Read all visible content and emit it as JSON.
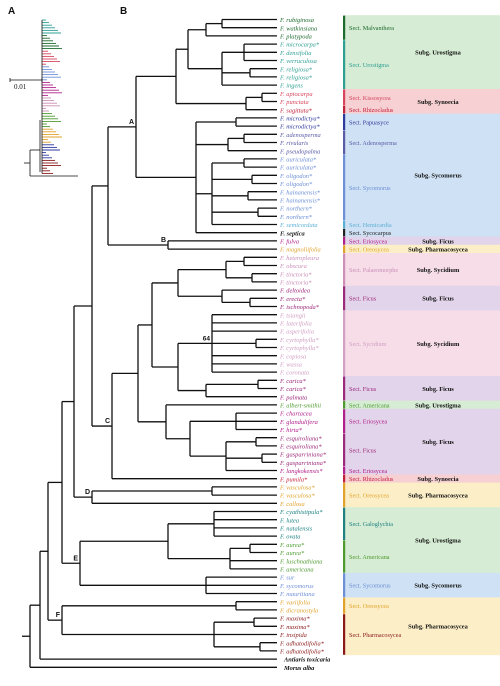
{
  "panels": {
    "a": "A",
    "b": "B"
  },
  "scale_bar": "0.01",
  "node_labels": {
    "a": "A",
    "b": "B",
    "c": "C",
    "d": "D",
    "e": "E",
    "f": "F",
    "support": "64"
  },
  "colors": {
    "Malvanthera": "#1e6b2e",
    "Urostigma": "#2f9f93",
    "Kissosycea": "#d6445e",
    "Rhizocladus": "#c21f3a",
    "Papuasyce": "#2e3b9c",
    "Adenosperma": "#5a5aa6",
    "Sycomorus": "#6c8fd6",
    "Hemicardia": "#5cb0d6",
    "Sycocarpus": "#222222",
    "Eriosycea": "#b0208a",
    "Oreosycea": "#e0a22b",
    "Palaeomorphe": "#cb8fb8",
    "Ficus": "#9c2a7a",
    "Sycidium": "#d1a0c4",
    "Americana": "#4e9a2f",
    "Galoglychia": "#1e8080",
    "Pharmacosycea": "#8a1a1a",
    "black": "#111111"
  },
  "taxa": [
    {
      "name": "F. rubiginosa",
      "c": "Malvanthera"
    },
    {
      "name": "F. watkinsiana",
      "c": "Malvanthera"
    },
    {
      "name": "F. platypoda",
      "c": "Malvanthera"
    },
    {
      "name": "F. microcarpa*",
      "c": "Urostigma"
    },
    {
      "name": "F. densifolia",
      "c": "Urostigma"
    },
    {
      "name": "F. verruculosa",
      "c": "Urostigma"
    },
    {
      "name": "F. religiosa*",
      "c": "Urostigma"
    },
    {
      "name": "F. religiosa*",
      "c": "Urostigma"
    },
    {
      "name": "F. ingens",
      "c": "Urostigma"
    },
    {
      "name": "F. apiocarpa",
      "c": "Kissosycea"
    },
    {
      "name": "F. punctata",
      "c": "Kissosycea"
    },
    {
      "name": "F. sagittata*",
      "c": "Rhizocladus"
    },
    {
      "name": "F. microdictya*",
      "c": "Papuasyce"
    },
    {
      "name": "F. microdictya*",
      "c": "Papuasyce"
    },
    {
      "name": "F. adenosperma",
      "c": "Adenosperma"
    },
    {
      "name": "F. rivularis",
      "c": "Adenosperma"
    },
    {
      "name": "F. pseudopalma",
      "c": "Adenosperma"
    },
    {
      "name": "F. auriculata*",
      "c": "Sycomorus"
    },
    {
      "name": "F. auriculata*",
      "c": "Sycomorus"
    },
    {
      "name": "F. oligodon*",
      "c": "Sycomorus"
    },
    {
      "name": "F. oligodon*",
      "c": "Sycomorus"
    },
    {
      "name": "F. hainanensis*",
      "c": "Sycomorus"
    },
    {
      "name": "F. hainanensis*",
      "c": "Sycomorus"
    },
    {
      "name": "F. northern*",
      "c": "Sycomorus"
    },
    {
      "name": "F. northern*",
      "c": "Sycomorus"
    },
    {
      "name": "F. semicordata",
      "c": "Hemicardia"
    },
    {
      "name": "F. septica",
      "c": "Sycocarpus"
    },
    {
      "name": "F. fulva",
      "c": "Eriosycea"
    },
    {
      "name": "F. magnoliifolia",
      "c": "Oreosycea"
    },
    {
      "name": "F. heteropleura",
      "c": "Palaeomorphe"
    },
    {
      "name": "F. obscura",
      "c": "Palaeomorphe"
    },
    {
      "name": "F. tinctoria*",
      "c": "Palaeomorphe"
    },
    {
      "name": "F. tinctoria*",
      "c": "Palaeomorphe"
    },
    {
      "name": "F. deltoidea",
      "c": "Ficus"
    },
    {
      "name": "F. erecta*",
      "c": "Ficus"
    },
    {
      "name": "F. ischnopoda*",
      "c": "Ficus"
    },
    {
      "name": "F. tsiangii",
      "c": "Sycidium"
    },
    {
      "name": "F. laterifolia",
      "c": "Sycidium"
    },
    {
      "name": "F. asperifolia",
      "c": "Sycidium"
    },
    {
      "name": "F. cyrtophylla*",
      "c": "Sycidium"
    },
    {
      "name": "F. cyrtophylla*",
      "c": "Sycidium"
    },
    {
      "name": "F. copiosa",
      "c": "Sycidium"
    },
    {
      "name": "F. wassa",
      "c": "Sycidium"
    },
    {
      "name": "F. coronata",
      "c": "Sycidium"
    },
    {
      "name": "F. carica*",
      "c": "Ficus"
    },
    {
      "name": "F. carica*",
      "c": "Ficus"
    },
    {
      "name": "F. palmata",
      "c": "Ficus"
    },
    {
      "name": "F. albert-smithii",
      "c": "Americana"
    },
    {
      "name": "F. chartacea",
      "c": "Eriosycea"
    },
    {
      "name": "F. glandulifera",
      "c": "Eriosycea"
    },
    {
      "name": "F. hirta*",
      "c": "Eriosycea"
    },
    {
      "name": "F. esquiroliana*",
      "c": "Ficus"
    },
    {
      "name": "F. esquiroliana*",
      "c": "Ficus"
    },
    {
      "name": "F. gasparriniana*",
      "c": "Ficus"
    },
    {
      "name": "F. gasparriniana*",
      "c": "Ficus"
    },
    {
      "name": "F. langkokensis*",
      "c": "Eriosycea"
    },
    {
      "name": "F. pumila*",
      "c": "Rhizocladus"
    },
    {
      "name": "F. vasculosa*",
      "c": "Oreosycea"
    },
    {
      "name": "F. vasculosa*",
      "c": "Oreosycea"
    },
    {
      "name": "F. callosa",
      "c": "Oreosycea"
    },
    {
      "name": "F. cyathistipula*",
      "c": "Galoglychia"
    },
    {
      "name": "F. lutea",
      "c": "Galoglychia"
    },
    {
      "name": "F. natalensis",
      "c": "Galoglychia"
    },
    {
      "name": "F. ovata",
      "c": "Galoglychia"
    },
    {
      "name": "F. aurea*",
      "c": "Americana"
    },
    {
      "name": "F. aurea*",
      "c": "Americana"
    },
    {
      "name": "F. luschnathiana",
      "c": "Americana"
    },
    {
      "name": "F. americana",
      "c": "Americana"
    },
    {
      "name": "F. sur",
      "c": "Sycomorus"
    },
    {
      "name": "F. sycomorus",
      "c": "Sycomorus"
    },
    {
      "name": "F. mauritiana",
      "c": "Sycomorus"
    },
    {
      "name": "F. variifolia",
      "c": "Oreosycea"
    },
    {
      "name": "F. dicranostyla",
      "c": "Oreosycea"
    },
    {
      "name": "F. maxima*",
      "c": "Pharmacosycea"
    },
    {
      "name": "F. maxima*",
      "c": "Pharmacosycea"
    },
    {
      "name": "F. insipida",
      "c": "Pharmacosycea"
    },
    {
      "name": "F. adhatodifolia*",
      "c": "Pharmacosycea"
    },
    {
      "name": "F. adhatodifolia*",
      "c": "Pharmacosycea"
    },
    {
      "name": "Antiaris toxicaria",
      "c": "black"
    },
    {
      "name": "Morus alba",
      "c": "black"
    }
  ],
  "sections": [
    {
      "label": "Sect. Malvanthera",
      "s": 0,
      "e": 2,
      "c": "Malvanthera",
      "bg": "#d6ecd4"
    },
    {
      "label": "Sect. Urostigma",
      "s": 3,
      "e": 8,
      "c": "Urostigma",
      "bg": "#d6ecd4"
    },
    {
      "label": "Sect. Kissosycea",
      "s": 9,
      "e": 10,
      "c": "Kissosycea",
      "bg": "#f6d0d2"
    },
    {
      "label": "Sect. Rhizocladus",
      "s": 11,
      "e": 11,
      "c": "Rhizocladus",
      "bg": "#f6d0d2"
    },
    {
      "label": "Sect. Papuasyce",
      "s": 12,
      "e": 13,
      "c": "Papuasyce",
      "bg": "#cfe1f4"
    },
    {
      "label": "Sect. Adenosperma",
      "s": 14,
      "e": 16,
      "c": "Adenosperma",
      "bg": "#cfe1f4"
    },
    {
      "label": "Sect. Sycomorus",
      "s": 17,
      "e": 24,
      "c": "Sycomorus",
      "bg": "#cfe1f4"
    },
    {
      "label": "Sect. Hemicardia",
      "s": 25,
      "e": 25,
      "c": "Hemicardia",
      "bg": "#cfe1f4"
    },
    {
      "label": "Sect. Sycocarpus",
      "s": 26,
      "e": 26,
      "c": "Sycocarpus",
      "bg": "#cfe1f4"
    },
    {
      "label": "Sect. Eriosycea",
      "s": 27,
      "e": 27,
      "c": "Eriosycea",
      "bg": "#e2d4ea"
    },
    {
      "label": "Sect. Oreosycea",
      "s": 28,
      "e": 28,
      "c": "Oreosycea",
      "bg": "#fcefc8"
    },
    {
      "label": "Sect. Palaeomorphe",
      "s": 29,
      "e": 32,
      "c": "Palaeomorphe",
      "bg": "#f6dde8"
    },
    {
      "label": "Sect. Ficus",
      "s": 33,
      "e": 35,
      "c": "Ficus",
      "bg": "#e2d4ea"
    },
    {
      "label": "Sect. Sycidium",
      "s": 36,
      "e": 43,
      "c": "Sycidium",
      "bg": "#f6dde8"
    },
    {
      "label": "Sect. Ficus",
      "s": 44,
      "e": 46,
      "c": "Ficus",
      "bg": "#e2d4ea"
    },
    {
      "label": "Sect. Americana",
      "s": 47,
      "e": 47,
      "c": "Americana",
      "bg": "#d6ecd4"
    },
    {
      "label": "Sect. Eriosycea",
      "s": 48,
      "e": 50,
      "c": "Eriosycea",
      "bg": "#e2d4ea"
    },
    {
      "label": "Sect. Ficus",
      "s": 51,
      "e": 54,
      "c": "Ficus",
      "bg": "#e2d4ea"
    },
    {
      "label": "Sect. Eriosycea",
      "s": 55,
      "e": 55,
      "c": "Eriosycea",
      "bg": "#e2d4ea"
    },
    {
      "label": "Sect. Rhizocladus",
      "s": 56,
      "e": 56,
      "c": "Rhizocladus",
      "bg": "#f6d0d2"
    },
    {
      "label": "Sect. Oreosycea",
      "s": 57,
      "e": 59,
      "c": "Oreosycea",
      "bg": "#fcefc8"
    },
    {
      "label": "Sect. Galoglychia",
      "s": 60,
      "e": 63,
      "c": "Galoglychia",
      "bg": "#d6ecd4"
    },
    {
      "label": "Sect. Americana",
      "s": 64,
      "e": 67,
      "c": "Americana",
      "bg": "#d6ecd4"
    },
    {
      "label": "Sect. Sycomorus",
      "s": 68,
      "e": 70,
      "c": "Sycomorus",
      "bg": "#cfe1f4"
    },
    {
      "label": "Sect. Oreosycea",
      "s": 71,
      "e": 72,
      "c": "Oreosycea",
      "bg": "#fcefc8"
    },
    {
      "label": "Sect. Pharmacosycea",
      "s": 73,
      "e": 77,
      "c": "Pharmacosycea",
      "bg": "#fcefc8"
    }
  ],
  "subgenera": [
    {
      "label": "Subg. Urostigma",
      "s": 0,
      "e": 8
    },
    {
      "label": "Subg. Synoecia",
      "s": 9,
      "e": 11
    },
    {
      "label": "Subg. Sycomorus",
      "s": 12,
      "e": 26
    },
    {
      "label": "Subg. Ficus",
      "s": 27,
      "e": 27
    },
    {
      "label": "Subg. Pharmacosycea",
      "s": 28,
      "e": 28
    },
    {
      "label": "Subg. Sycidium",
      "s": 29,
      "e": 32
    },
    {
      "label": "Subg. Ficus",
      "s": 33,
      "e": 35
    },
    {
      "label": "Subg. Sycidium",
      "s": 36,
      "e": 43
    },
    {
      "label": "Subg. Ficus",
      "s": 44,
      "e": 46
    },
    {
      "label": "Subg. Urostigma",
      "s": 47,
      "e": 47
    },
    {
      "label": "Subg. Ficus",
      "s": 48,
      "e": 55
    },
    {
      "label": "Subg. Synoecia",
      "s": 56,
      "e": 56
    },
    {
      "label": "Subg. Pharmacosycea",
      "s": 57,
      "e": 59
    },
    {
      "label": "Subg. Urostigma",
      "s": 60,
      "e": 67
    },
    {
      "label": "Subg. Sycomorus",
      "s": 68,
      "e": 70
    },
    {
      "label": "Subg. Pharmacosycea",
      "s": 71,
      "e": 77
    }
  ]
}
